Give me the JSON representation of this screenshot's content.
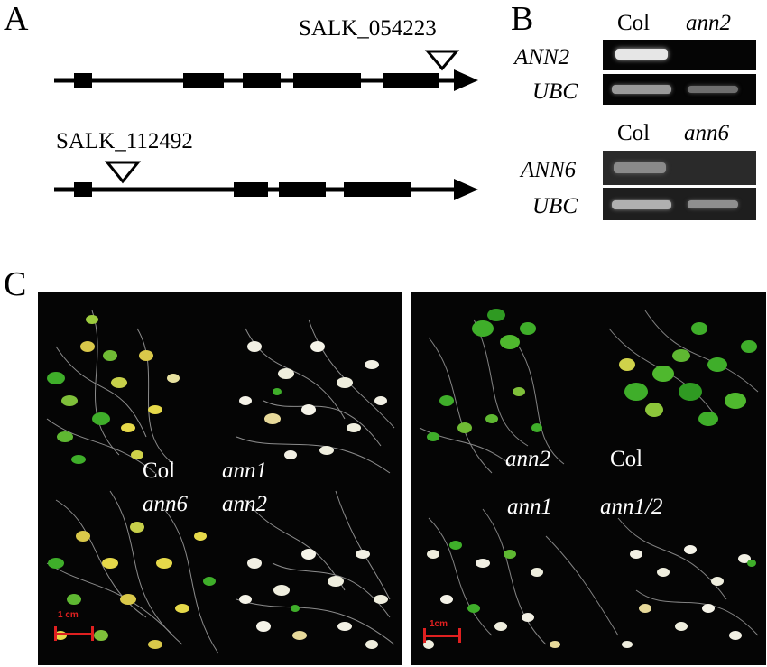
{
  "panels": {
    "a": {
      "letter": "A",
      "gene1_insertion": "SALK_054223",
      "gene2_insertion": "SALK_112492"
    },
    "b": {
      "letter": "B",
      "gel1": {
        "col_label": "Col",
        "mutant_label": "ann2",
        "row1": "ANN2",
        "row2": "UBC"
      },
      "gel2": {
        "col_label": "Col",
        "mutant_label": "ann6",
        "row1": "ANN6",
        "row2": "UBC"
      }
    },
    "c": {
      "letter": "C",
      "left_plate": {
        "labels": [
          "Col",
          "ann1",
          "ann6",
          "ann2"
        ],
        "scale_bar": "1 cm"
      },
      "right_plate": {
        "labels": [
          "ann2",
          "Col",
          "ann1",
          "ann1/2"
        ],
        "scale_bar": "1cm"
      }
    }
  },
  "colors": {
    "scale_bar": "#e02020",
    "seedling_green": "#3fae2a",
    "seedling_yellow": "#d9c84a",
    "seedling_pale": "#efeede"
  }
}
